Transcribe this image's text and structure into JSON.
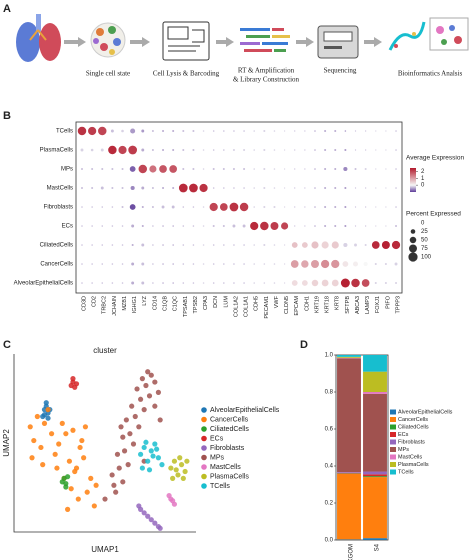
{
  "panel_labels": [
    "A",
    "B",
    "C",
    "D"
  ],
  "workflow": {
    "steps": [
      [
        "Single cell state"
      ],
      [
        "Cell Lysis & Barcoding"
      ],
      [
        "RT & Amplification",
        "& Library Construction"
      ],
      [
        "Sequencing"
      ],
      [
        "Bioinformatics Analsis"
      ]
    ]
  },
  "chart_data": [
    {
      "type": "dot",
      "categories": [
        "CD3D",
        "CD2",
        "TRBC2",
        "JCHAIN",
        "MZB1",
        "IGHG1",
        "LYZ",
        "CD14",
        "C1QB",
        "C1QC",
        "TPSAB1",
        "TPSB2",
        "CPA3",
        "DCN",
        "LUM",
        "COL1A2",
        "COL1A1",
        "CDH5",
        "PECAM1",
        "VWF",
        "CLDN5",
        "EPCAM",
        "CDH1",
        "KRT19",
        "KRT18",
        "KRT8",
        "SFTPB",
        "ABCA3",
        "LAMP3",
        "FOXJ1",
        "PIFO",
        "TPPP3"
      ],
      "rows": [
        "TCells",
        "PlasmaCells",
        "MPs",
        "MastCells",
        "Fibroblasts",
        "ECs",
        "CiliatedCells",
        "CancerCells",
        "AlveolarEpithelialCells"
      ],
      "percent": [
        [
          85,
          80,
          85,
          10,
          8,
          30,
          10,
          5,
          5,
          5,
          5,
          5,
          3,
          3,
          3,
          3,
          3,
          3,
          5,
          3,
          2,
          2,
          2,
          3,
          5,
          5,
          3,
          2,
          2,
          2,
          2,
          3
        ],
        [
          10,
          8,
          10,
          85,
          80,
          90,
          10,
          5,
          5,
          5,
          5,
          5,
          3,
          3,
          3,
          5,
          5,
          3,
          5,
          3,
          2,
          2,
          2,
          3,
          5,
          5,
          5,
          2,
          2,
          2,
          2,
          3
        ],
        [
          5,
          5,
          5,
          5,
          5,
          40,
          85,
          60,
          70,
          70,
          5,
          5,
          3,
          5,
          5,
          5,
          5,
          3,
          5,
          3,
          2,
          2,
          2,
          3,
          5,
          5,
          20,
          5,
          5,
          2,
          2,
          3
        ],
        [
          5,
          5,
          10,
          5,
          5,
          20,
          10,
          5,
          5,
          5,
          90,
          90,
          80,
          3,
          3,
          3,
          3,
          3,
          5,
          3,
          2,
          2,
          2,
          3,
          5,
          5,
          5,
          2,
          2,
          2,
          2,
          3
        ],
        [
          3,
          3,
          3,
          3,
          5,
          40,
          5,
          5,
          10,
          10,
          3,
          3,
          3,
          80,
          70,
          90,
          85,
          3,
          5,
          5,
          2,
          2,
          2,
          3,
          5,
          5,
          5,
          2,
          2,
          2,
          2,
          3
        ],
        [
          3,
          3,
          3,
          3,
          3,
          10,
          5,
          3,
          3,
          3,
          3,
          3,
          3,
          5,
          5,
          10,
          10,
          80,
          85,
          75,
          60,
          2,
          2,
          3,
          5,
          5,
          5,
          2,
          2,
          2,
          2,
          5
        ],
        [
          3,
          3,
          3,
          3,
          3,
          5,
          10,
          3,
          3,
          3,
          3,
          3,
          3,
          3,
          3,
          3,
          3,
          3,
          5,
          3,
          2,
          40,
          40,
          60,
          60,
          60,
          20,
          10,
          5,
          70,
          75,
          80
        ],
        [
          3,
          3,
          3,
          3,
          3,
          10,
          10,
          3,
          3,
          3,
          3,
          3,
          3,
          3,
          3,
          3,
          3,
          3,
          3,
          3,
          2,
          70,
          65,
          75,
          80,
          80,
          40,
          30,
          20,
          5,
          5,
          10
        ],
        [
          3,
          3,
          3,
          3,
          3,
          10,
          10,
          3,
          3,
          3,
          3,
          3,
          3,
          3,
          3,
          3,
          3,
          3,
          3,
          3,
          2,
          40,
          40,
          50,
          55,
          55,
          95,
          85,
          70,
          5,
          5,
          5
        ]
      ],
      "expression": [
        [
          2.2,
          2.1,
          2.0,
          -0.3,
          -0.2,
          -0.5,
          -0.5,
          -0.3,
          -0.4,
          -0.4,
          -0.3,
          -0.3,
          -0.2,
          -0.3,
          -0.3,
          -0.3,
          -0.3,
          -0.2,
          -0.2,
          -0.2,
          -0.2,
          -0.3,
          -0.3,
          -0.4,
          -0.4,
          -0.4,
          -0.5,
          -0.3,
          -0.3,
          -0.2,
          -0.2,
          -0.3
        ],
        [
          -0.2,
          -0.2,
          -0.2,
          2.3,
          2.0,
          2.1,
          -0.4,
          -0.3,
          -0.4,
          -0.4,
          -0.3,
          -0.3,
          -0.2,
          -0.3,
          -0.3,
          -0.2,
          -0.2,
          -0.2,
          -0.2,
          -0.2,
          -0.2,
          -0.3,
          -0.3,
          -0.4,
          -0.4,
          -0.4,
          -0.5,
          -0.3,
          -0.3,
          -0.2,
          -0.2,
          -0.3
        ],
        [
          -0.3,
          -0.3,
          -0.3,
          -0.3,
          -0.3,
          -0.8,
          2.0,
          1.5,
          1.8,
          1.8,
          -0.3,
          -0.3,
          -0.2,
          -0.3,
          -0.3,
          -0.3,
          -0.3,
          -0.2,
          -0.2,
          -0.2,
          -0.2,
          -0.3,
          -0.3,
          -0.4,
          -0.4,
          -0.4,
          -0.6,
          -0.3,
          -0.2,
          -0.2,
          -0.2,
          -0.3
        ],
        [
          -0.3,
          -0.3,
          -0.3,
          -0.3,
          -0.3,
          -0.6,
          -0.4,
          -0.3,
          -0.4,
          -0.4,
          2.3,
          2.3,
          2.2,
          -0.3,
          -0.3,
          -0.3,
          -0.3,
          -0.2,
          -0.2,
          -0.2,
          -0.2,
          -0.3,
          -0.3,
          -0.4,
          -0.4,
          -0.4,
          -0.5,
          -0.3,
          -0.3,
          -0.2,
          -0.2,
          -0.3
        ],
        [
          -0.3,
          -0.3,
          -0.3,
          -0.3,
          -0.3,
          -0.9,
          -0.4,
          -0.3,
          -0.3,
          -0.3,
          -0.3,
          -0.3,
          -0.2,
          2.0,
          2.0,
          2.2,
          2.1,
          -0.2,
          -0.2,
          -0.2,
          -0.2,
          -0.3,
          -0.3,
          -0.4,
          -0.4,
          -0.4,
          -0.5,
          -0.3,
          -0.3,
          -0.2,
          -0.2,
          -0.3
        ],
        [
          -0.3,
          -0.3,
          -0.3,
          -0.3,
          -0.3,
          -0.4,
          -0.4,
          -0.3,
          -0.4,
          -0.4,
          -0.3,
          -0.3,
          -0.2,
          -0.3,
          -0.3,
          -0.3,
          -0.3,
          2.3,
          2.2,
          2.1,
          2.0,
          -0.3,
          -0.3,
          -0.4,
          -0.4,
          -0.4,
          -0.5,
          -0.3,
          -0.3,
          -0.2,
          -0.2,
          -0.3
        ],
        [
          -0.3,
          -0.3,
          -0.3,
          -0.3,
          -0.3,
          -0.4,
          -0.3,
          -0.3,
          -0.4,
          -0.4,
          -0.3,
          -0.3,
          -0.2,
          -0.3,
          -0.3,
          -0.3,
          -0.3,
          -0.2,
          -0.2,
          -0.2,
          -0.2,
          0.6,
          0.5,
          0.6,
          0.4,
          0.5,
          -0.2,
          -0.2,
          -0.2,
          2.3,
          2.4,
          2.3
        ],
        [
          -0.3,
          -0.3,
          -0.3,
          -0.3,
          -0.3,
          -0.4,
          -0.3,
          -0.3,
          -0.4,
          -0.4,
          -0.3,
          -0.3,
          -0.2,
          -0.3,
          -0.3,
          -0.3,
          -0.3,
          -0.2,
          -0.2,
          -0.2,
          -0.2,
          1.0,
          0.9,
          1.0,
          1.2,
          1.1,
          0.2,
          0.1,
          0.0,
          -0.2,
          -0.2,
          -0.2
        ],
        [
          -0.3,
          -0.3,
          -0.3,
          -0.3,
          -0.3,
          -0.4,
          -0.3,
          -0.3,
          -0.4,
          -0.4,
          -0.3,
          -0.3,
          -0.2,
          -0.3,
          -0.3,
          -0.3,
          -0.3,
          -0.2,
          -0.2,
          -0.2,
          -0.2,
          0.3,
          0.3,
          0.4,
          0.4,
          0.4,
          2.4,
          2.2,
          1.9,
          -0.2,
          -0.2,
          -0.2
        ]
      ],
      "color_label": "Average Expression",
      "color_lim": [
        -1,
        2.5
      ],
      "color_ticks": [
        0,
        1,
        2
      ],
      "colors": [
        "#5e3c99",
        "#f7f7f7",
        "#b2182b"
      ],
      "size_label": "Percent Expressed",
      "size_ticks": [
        0,
        25,
        50,
        75,
        100
      ]
    },
    {
      "type": "scatter",
      "title": "cluster",
      "xlabel": "UMAP1",
      "ylabel": "UMAP2",
      "xlim": [
        0,
        100
      ],
      "ylim": [
        0,
        100
      ],
      "series": [
        {
          "name": "AlveolarEpithelialCells",
          "color": "#1f77b4",
          "x": [
            15,
            16,
            17,
            18,
            19,
            17,
            16,
            18
          ],
          "y": [
            66,
            70,
            72,
            68,
            70,
            74,
            67,
            65
          ]
        },
        {
          "name": "CancerCells",
          "color": "#ff7f0e",
          "x": [
            8,
            12,
            16,
            10,
            14,
            20,
            18,
            22,
            9,
            24,
            28,
            32,
            36,
            30,
            34,
            38,
            42,
            27,
            31,
            35,
            40,
            44,
            29,
            33,
            37,
            26,
            39,
            45,
            23,
            15
          ],
          "y": [
            60,
            66,
            62,
            52,
            48,
            56,
            70,
            44,
            42,
            50,
            56,
            58,
            48,
            40,
            36,
            42,
            30,
            30,
            24,
            18,
            22,
            14,
            12,
            34,
            52,
            62,
            60,
            26,
            36,
            38
          ]
        },
        {
          "name": "CiliatedCells",
          "color": "#2ca02c",
          "x": [
            26,
            27,
            28,
            29,
            28
          ],
          "y": [
            28,
            30,
            27,
            31,
            25
          ]
        },
        {
          "name": "ECs",
          "color": "#d62728",
          "x": [
            31,
            32,
            33,
            34,
            32
          ],
          "y": [
            84,
            86,
            83,
            85,
            88
          ]
        },
        {
          "name": "Fibroblasts",
          "color": "#9467bd",
          "x": [
            69,
            70,
            72,
            74,
            76,
            78,
            80,
            81
          ],
          "y": [
            14,
            12,
            10,
            8,
            6,
            4,
            2,
            1
          ]
        },
        {
          "name": "MPs",
          "color": "#a0524f",
          "x": [
            50,
            56,
            60,
            54,
            58,
            63,
            57,
            61,
            66,
            60,
            64,
            69,
            62,
            67,
            72,
            65,
            70,
            75,
            68,
            73,
            78,
            71,
            76,
            80,
            74,
            78,
            72,
            55,
            59,
            81
          ],
          "y": [
            18,
            22,
            28,
            32,
            36,
            38,
            44,
            46,
            50,
            54,
            56,
            60,
            64,
            66,
            70,
            72,
            76,
            78,
            82,
            84,
            86,
            88,
            90,
            80,
            92,
            72,
            40,
            26,
            60,
            64
          ]
        },
        {
          "name": "MastCells",
          "color": "#e377c2",
          "x": [
            86,
            87,
            88,
            89
          ],
          "y": [
            20,
            18,
            17,
            15
          ]
        },
        {
          "name": "PlasmaCells",
          "color": "#bcbd22",
          "x": [
            87,
            89,
            91,
            93,
            95,
            96,
            88,
            92,
            94,
            90
          ],
          "y": [
            36,
            40,
            32,
            38,
            34,
            40,
            30,
            42,
            30,
            35
          ]
        },
        {
          "name": "TCells",
          "color": "#17becf",
          "x": [
            70,
            72,
            74,
            76,
            78,
            80,
            82,
            71,
            75,
            79,
            73,
            77
          ],
          "y": [
            44,
            48,
            40,
            46,
            50,
            42,
            38,
            36,
            35,
            47,
            51,
            43
          ]
        }
      ]
    },
    {
      "type": "stacked_bar",
      "categories": [
        "KGOM",
        "S4"
      ],
      "ylim": [
        0,
        1
      ],
      "yticks": [
        {
          "value": 0,
          "label": "0.0"
        },
        0.2,
        0.4,
        0.6,
        0.8,
        {
          "value": 1,
          "label": "1.0"
        }
      ],
      "series": [
        {
          "name": "AlveolarEpithelialCells",
          "color": "#1f77b4",
          "values": [
            0.003,
            0.01
          ]
        },
        {
          "name": "CancerCells",
          "color": "#ff7f0e",
          "values": [
            0.355,
            0.33
          ]
        },
        {
          "name": "CiliatedCells",
          "color": "#2ca02c",
          "values": [
            0.002,
            0.005
          ]
        },
        {
          "name": "ECs",
          "color": "#d62728",
          "values": [
            0.003,
            0.01
          ]
        },
        {
          "name": "Fibroblasts",
          "color": "#9467bd",
          "values": [
            0.004,
            0.015
          ]
        },
        {
          "name": "MPs",
          "color": "#a0524f",
          "values": [
            0.615,
            0.42
          ]
        },
        {
          "name": "MastCells",
          "color": "#e377c2",
          "values": [
            0.003,
            0.01
          ]
        },
        {
          "name": "PlasmaCells",
          "color": "#bcbd22",
          "values": [
            0.005,
            0.11
          ]
        },
        {
          "name": "TCells",
          "color": "#17becf",
          "values": [
            0.01,
            0.09
          ]
        }
      ]
    }
  ]
}
